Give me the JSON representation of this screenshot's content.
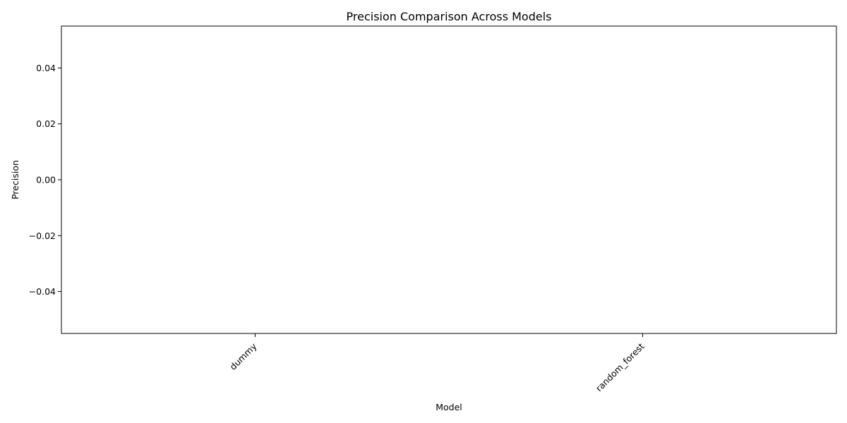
{
  "chart_data": {
    "type": "bar",
    "title": "Precision Comparison Across Models",
    "xlabel": "Model",
    "ylabel": "Precision",
    "categories": [
      "dummy",
      "random_forest"
    ],
    "values": [
      0.0,
      0.0
    ],
    "ylim": [
      -0.055,
      0.055
    ],
    "yticks": [
      0.04,
      0.02,
      0.0,
      -0.02,
      -0.04
    ],
    "ytick_labels": [
      "0.04",
      "0.02",
      "0.00",
      "−0.02",
      "−0.04"
    ],
    "xtick_rotation": "45",
    "grid": false,
    "legend": "none",
    "colors": {
      "axes": "#000000",
      "background": "#ffffff",
      "bar": "#1f77b4"
    }
  }
}
